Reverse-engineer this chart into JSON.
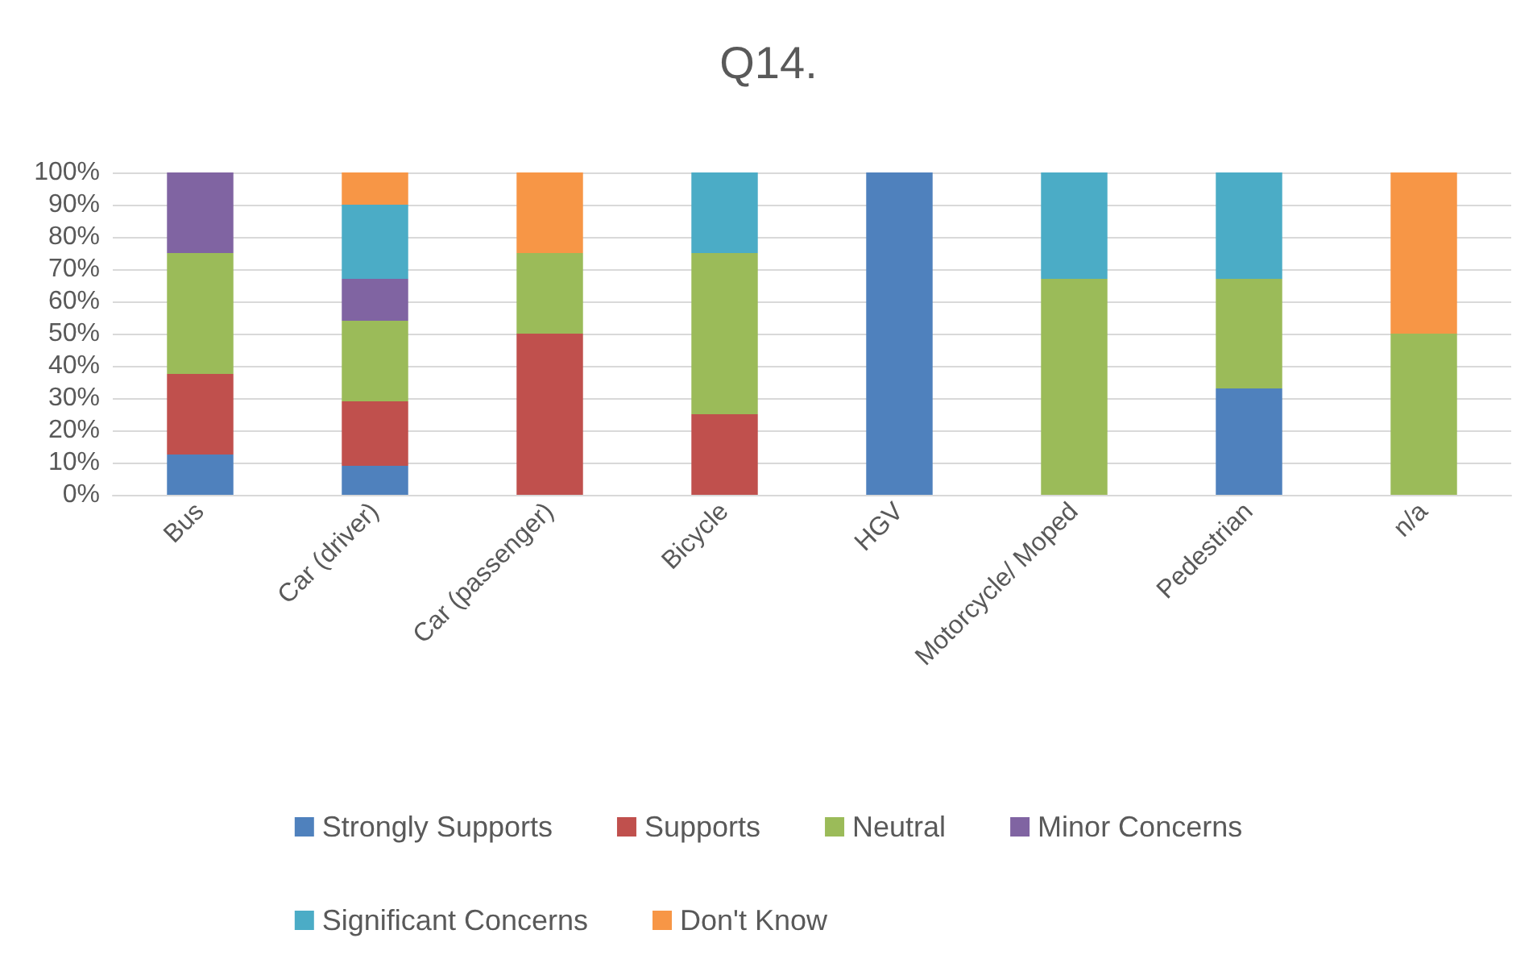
{
  "chart_data": {
    "type": "bar",
    "title": "Q14.",
    "stacked": true,
    "categories": [
      "Bus",
      "Car (driver)",
      "Car (passenger)",
      "Bicycle",
      "HGV",
      "Motorcycle/ Moped",
      "Pedestrian",
      "n/a"
    ],
    "series": [
      {
        "name": "Strongly Supports",
        "color": "#4f81bd",
        "values": [
          12.5,
          9,
          0,
          0,
          100,
          0,
          33,
          0
        ]
      },
      {
        "name": "Supports",
        "color": "#c0504d",
        "values": [
          25,
          20,
          50,
          25,
          0,
          0,
          0,
          0
        ]
      },
      {
        "name": "Neutral",
        "color": "#9bbb59",
        "values": [
          37.5,
          25,
          25,
          50,
          0,
          67,
          34,
          50
        ]
      },
      {
        "name": "Minor Concerns",
        "color": "#8064a2",
        "values": [
          25,
          13,
          0,
          0,
          0,
          0,
          0,
          0
        ]
      },
      {
        "name": "Significant Concerns",
        "color": "#4bacc6",
        "values": [
          0,
          23,
          0,
          25,
          0,
          33,
          33,
          0
        ]
      },
      {
        "name": "Don't Know",
        "color": "#f79646",
        "values": [
          0,
          10,
          25,
          0,
          0,
          0,
          0,
          50
        ]
      }
    ],
    "ylim": [
      0,
      100
    ],
    "yticks": [
      {
        "value": 0,
        "label": "0%"
      },
      {
        "value": 10,
        "label": "10%"
      },
      {
        "value": 20,
        "label": "20%"
      },
      {
        "value": 30,
        "label": "30%"
      },
      {
        "value": 40,
        "label": "40%"
      },
      {
        "value": 50,
        "label": "50%"
      },
      {
        "value": 60,
        "label": "60%"
      },
      {
        "value": 70,
        "label": "70%"
      },
      {
        "value": 80,
        "label": "80%"
      },
      {
        "value": 90,
        "label": "90%"
      },
      {
        "value": 100,
        "label": "100%"
      }
    ],
    "grid": "y",
    "legend": "bottom"
  }
}
